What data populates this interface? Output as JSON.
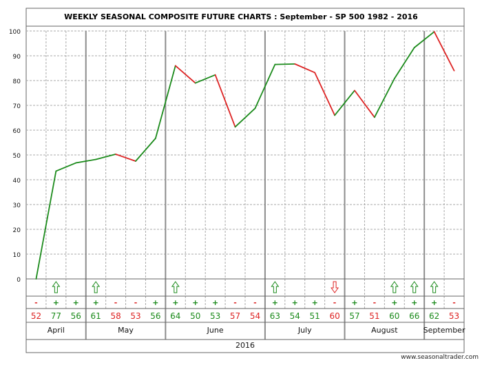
{
  "chart_data": {
    "type": "line",
    "title": "WEEKLY SEASONAL COMPOSITE FUTURE CHARTS : September - SP 500 1982 - 2016",
    "ylim": [
      0,
      100
    ],
    "yticks": [
      "0",
      "10",
      "20",
      "30",
      "40",
      "50",
      "60",
      "70",
      "80",
      "90",
      "100"
    ],
    "grid": true,
    "up_color": "#1a8a1a",
    "down_color": "#dd2222",
    "values": [
      0,
      43.5,
      46.8,
      48.2,
      50.3,
      47.5,
      56.7,
      86,
      79,
      82.3,
      61.3,
      68.8,
      86.5,
      86.7,
      83.2,
      66,
      76,
      65.2,
      80.8,
      93.3,
      99.7,
      84
    ],
    "signs": [
      "-",
      "+",
      "+",
      "+",
      "-",
      "-",
      "+",
      "+",
      "+",
      "+",
      "-",
      "-",
      "+",
      "+",
      "+",
      "-",
      "+",
      "-",
      "+",
      "+",
      "+",
      "-"
    ],
    "percentages": [
      "52",
      "77",
      "56",
      "61",
      "58",
      "53",
      "56",
      "64",
      "50",
      "53",
      "57",
      "54",
      "63",
      "54",
      "51",
      "60",
      "57",
      "51",
      "60",
      "66",
      "62",
      "53"
    ],
    "arrows": [
      "",
      "up",
      "",
      "up",
      "",
      "",
      "",
      "up",
      "",
      "",
      "",
      "",
      "up",
      "",
      "",
      "down",
      "",
      "",
      "up",
      "up",
      "up",
      ""
    ],
    "months": [
      {
        "label": "April",
        "start": 0,
        "end": 3
      },
      {
        "label": "May",
        "start": 3,
        "end": 7
      },
      {
        "label": "June",
        "start": 7,
        "end": 12
      },
      {
        "label": "July",
        "start": 12,
        "end": 16
      },
      {
        "label": "August",
        "start": 16,
        "end": 20
      },
      {
        "label": "September",
        "start": 20,
        "end": 22
      }
    ],
    "year": "2016"
  },
  "watermark": "www.seasonaltrader.com"
}
